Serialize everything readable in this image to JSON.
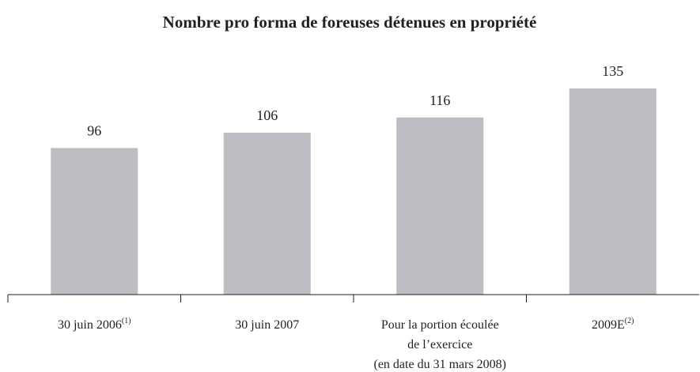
{
  "chart_data": {
    "type": "bar",
    "title": "Nombre pro forma de foreuses détenues en propriété",
    "categories": [
      [
        "30 juin 2006"
      ],
      [
        "30 juin 2007"
      ],
      [
        "Pour la portion écoulée",
        "de l’exercice",
        "(en date du 31 mars 2008)"
      ],
      [
        "2009E"
      ]
    ],
    "category_notes": [
      "(1)",
      null,
      null,
      "(2)"
    ],
    "values": [
      96,
      106,
      116,
      135
    ],
    "color": "#bcbec3"
  }
}
